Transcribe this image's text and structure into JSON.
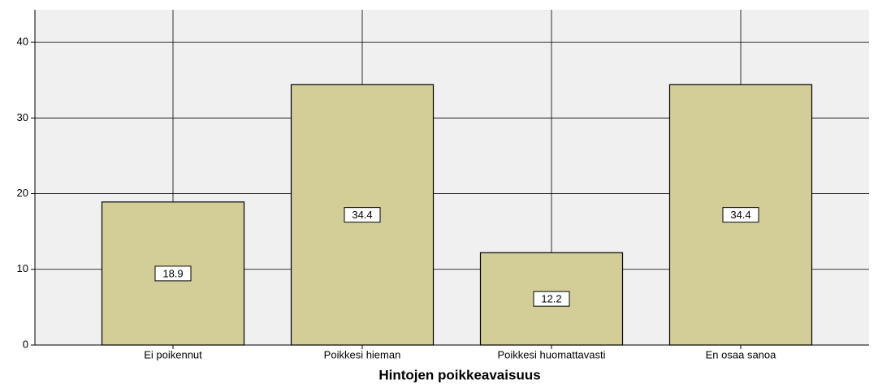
{
  "chart_data": {
    "type": "bar",
    "x_label": "Hintojen poikkeavaisuus",
    "categories": [
      "Ei poikennut",
      "Poikkesi hieman",
      "Poikkesi huomattavasti",
      "En osaa sanoa"
    ],
    "values": [
      18.9,
      34.4,
      12.2,
      34.4
    ],
    "color": "#d3ce98",
    "ylim": [
      0,
      44.3
    ],
    "yticks": [
      0,
      10,
      20,
      30,
      40
    ],
    "grid": true
  }
}
